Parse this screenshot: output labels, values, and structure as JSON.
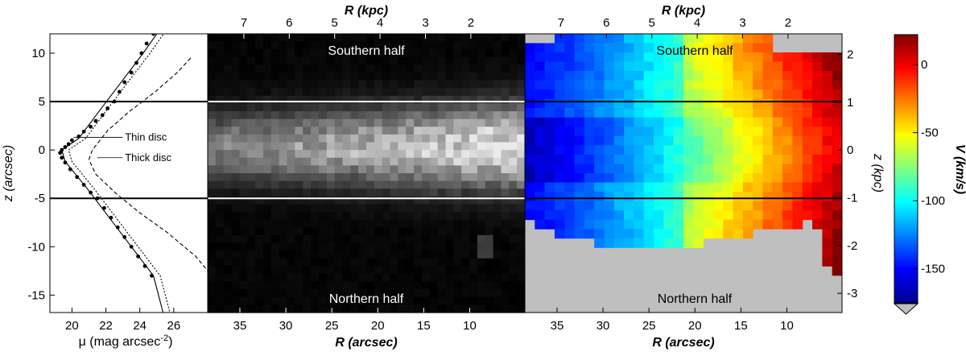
{
  "chart_data": [
    {
      "type": "line",
      "panel": "surface-brightness-profile",
      "xlabel": "μ (mag arcsec",
      "xlabel_sup": "-2",
      "xlabel_close": ")",
      "ylabel": "z (arcsec)",
      "x_ticks": [
        "20",
        "22",
        "24",
        "26"
      ],
      "y_ticks": [
        "10",
        "5",
        "0",
        "-5",
        "-10",
        "-15"
      ],
      "xlim": [
        18.7,
        28.0
      ],
      "ylim": [
        -16.8,
        12.0
      ],
      "annotations": [
        {
          "text": "Thin disc",
          "x": 20.1,
          "y": 1.3,
          "text_x": 21.7,
          "text_y": 1.3
        },
        {
          "text": "Thick disc",
          "x": 21.5,
          "y": -0.8,
          "text_x": 21.7,
          "text_y": -0.8
        }
      ],
      "horizontal_lines": [
        5,
        -5
      ],
      "series": [
        {
          "style": "dots",
          "x": [
            24.8,
            24.4,
            24.1,
            23.8,
            23.5,
            23.1,
            22.8,
            22.5,
            22.1,
            21.8,
            21.4,
            21.1,
            20.7,
            20.4,
            20.0,
            19.8,
            19.6,
            19.4,
            19.3,
            19.4,
            19.6,
            19.9,
            20.3,
            20.7,
            21.1,
            21.5,
            21.9,
            22.3,
            22.7,
            23.1,
            23.5,
            23.9,
            24.3,
            24.7
          ],
          "y": [
            12,
            11,
            10,
            9,
            8,
            7,
            6,
            5,
            4.3,
            3.6,
            3,
            2.4,
            1.9,
            1.4,
            1,
            0.6,
            0.3,
            0,
            -0.3,
            -0.8,
            -1.3,
            -2,
            -2.8,
            -3.6,
            -4.4,
            -5,
            -6,
            -7,
            -8,
            -9,
            -10,
            -11,
            -12,
            -13
          ]
        },
        {
          "style": "solid",
          "x": [
            25.4,
            24.2,
            22.9,
            21.6,
            20.4,
            19.4,
            19.6,
            20.9,
            22.2,
            23.5,
            24.8,
            25.4
          ],
          "y": [
            13,
            10,
            7,
            4,
            1.2,
            0,
            -1.2,
            -4,
            -7,
            -10,
            -13,
            -17
          ]
        },
        {
          "style": "dashed-thin",
          "x": [
            25.8,
            24.6,
            23.3,
            22.0,
            20.8,
            19.8,
            20.0,
            21.3,
            22.6,
            23.9,
            25.2,
            25.8
          ],
          "y": [
            13,
            10,
            7,
            4,
            1.2,
            0,
            -1.2,
            -4,
            -7,
            -10,
            -13,
            -17
          ]
        },
        {
          "style": "dashed-thick",
          "x": [
            27.0,
            26.2,
            24.9,
            23.4,
            22.1,
            21.2,
            21.0,
            21.4,
            22.6,
            24.0,
            25.6,
            27.3,
            28.0
          ],
          "y": [
            9.5,
            8.0,
            6.0,
            4.0,
            2.0,
            0.0,
            -1.0,
            -2.5,
            -4.5,
            -6.5,
            -8.5,
            -11.0,
            -12.5
          ]
        }
      ]
    },
    {
      "type": "heatmap",
      "panel": "image",
      "colormap": "grayscale",
      "xlabel": "R (arcsec)",
      "toplabel": "R (kpc)",
      "x_ticks": [
        "35",
        "30",
        "25",
        "20",
        "15",
        "10"
      ],
      "top_ticks": [
        "7",
        "6",
        "5",
        "4",
        "3",
        "2"
      ],
      "xlim": [
        38.5,
        4.0
      ],
      "ylim": [
        -16.8,
        12.0
      ],
      "labels": {
        "top": "Southern half",
        "bottom": "Northern half"
      },
      "horizontal_lines": [
        5,
        -5
      ]
    },
    {
      "type": "heatmap",
      "panel": "velocity-map",
      "colormap": "jet",
      "xlabel": "R (arcsec)",
      "toplabel": "R (kpc)",
      "right_label": "z (kpc)",
      "x_ticks": [
        "35",
        "30",
        "25",
        "20",
        "15",
        "10"
      ],
      "top_ticks": [
        "7",
        "6",
        "5",
        "4",
        "3",
        "2"
      ],
      "right_ticks": [
        "2",
        "1",
        "0",
        "-1",
        "-2",
        "-3"
      ],
      "xlim": [
        38.5,
        4.0
      ],
      "ylim": [
        -16.8,
        12.0
      ],
      "labels": {
        "top": "Southern half",
        "bottom": "Northern half"
      },
      "horizontal_lines": [
        5,
        -5
      ],
      "masked_color": "#bfbfbf"
    },
    {
      "type": "colorbar",
      "label": "V (km/s)",
      "ticks": [
        "0",
        "-50",
        "-100",
        "-150"
      ],
      "range": [
        -175,
        22
      ]
    }
  ]
}
